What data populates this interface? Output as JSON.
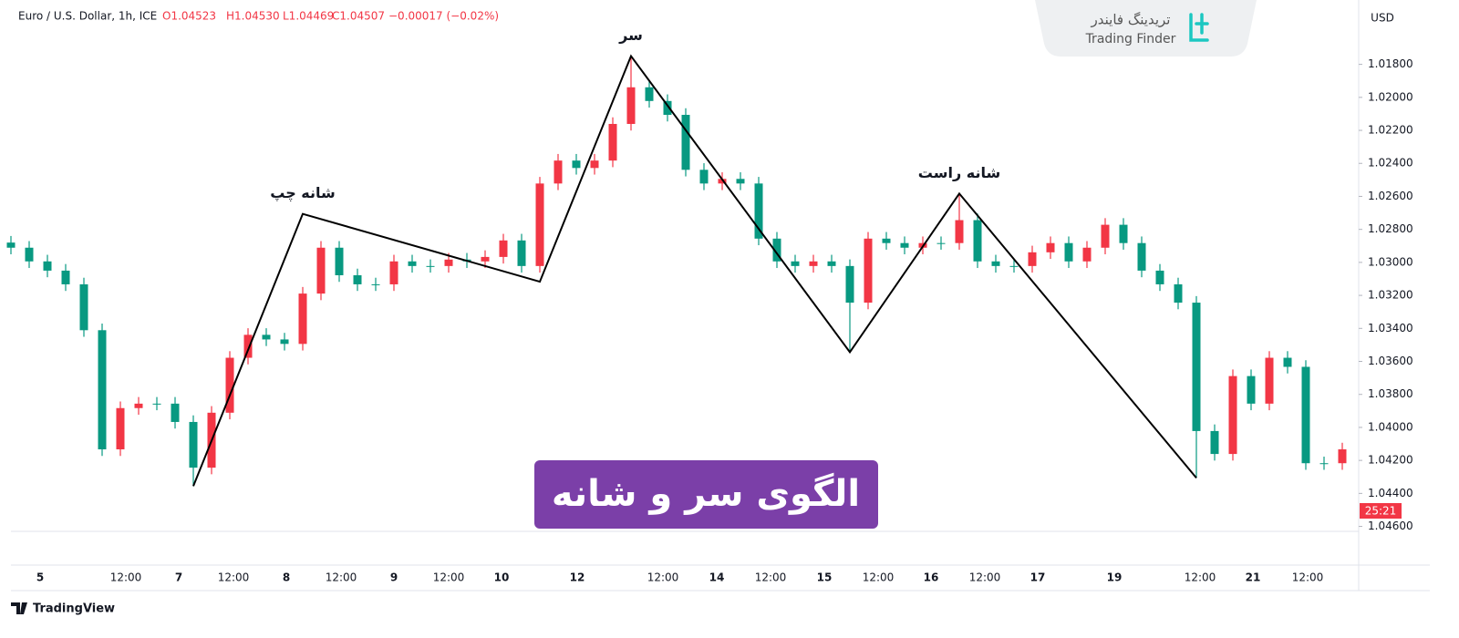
{
  "chart_data": {
    "type": "candlestick",
    "symbol": "Euro / U.S. Dollar, 1h, ICE",
    "ohlc_legend": [
      "O1.04523",
      "H1.04530",
      "L1.04469",
      "C1.04507",
      "−0.00017 (−0.02%)"
    ],
    "currency": "USD",
    "brand_fa": "تریدینگ فایندر",
    "brand_en": "Trading Finder",
    "title": "الگوی سر و شانه",
    "countdown": "25:21",
    "footer": "TradingView",
    "inverted_scale": true,
    "up_color": "#089981",
    "down_color": "#f23645",
    "ylim": [
      1.0463,
      1.0141
    ],
    "yticks": [
      {
        "value": 1.018,
        "label": "1.01800"
      },
      {
        "value": 1.02,
        "label": "1.02000"
      },
      {
        "value": 1.022,
        "label": "1.02200"
      },
      {
        "value": 1.024,
        "label": "1.02400"
      },
      {
        "value": 1.026,
        "label": "1.02600"
      },
      {
        "value": 1.028,
        "label": "1.02800"
      },
      {
        "value": 1.03,
        "label": "1.03000"
      },
      {
        "value": 1.032,
        "label": "1.03200"
      },
      {
        "value": 1.034,
        "label": "1.03400"
      },
      {
        "value": 1.036,
        "label": "1.03600"
      },
      {
        "value": 1.038,
        "label": "1.03800"
      },
      {
        "value": 1.04,
        "label": "1.04000"
      },
      {
        "value": 1.042,
        "label": "1.04200"
      },
      {
        "value": 1.044,
        "label": "1.04400"
      },
      {
        "value": 1.046,
        "label": "1.04600"
      }
    ],
    "time_labels": [
      "5",
      "12:00",
      "7",
      "12:00",
      "8",
      "12:00",
      "9",
      "12:00",
      "10",
      "12",
      "12:00",
      "14",
      "12:00",
      "15",
      "12:00",
      "16",
      "12:00",
      "17",
      "19",
      "12:00",
      "21",
      "12:00"
    ],
    "candles": [
      [
        1.0288,
        1.02951,
        1.0284,
        1.02911
      ],
      [
        1.02911,
        1.03034,
        1.02871,
        1.02994
      ],
      [
        1.02994,
        1.0309,
        1.02954,
        1.0305
      ],
      [
        1.0305,
        1.03173,
        1.0301,
        1.03133
      ],
      [
        1.03133,
        1.03451,
        1.03093,
        1.03411
      ],
      [
        1.03411,
        1.04173,
        1.03371,
        1.04133
      ],
      [
        1.04133,
        1.04173,
        1.03843,
        1.03883
      ],
      [
        1.03883,
        1.03923,
        1.03816,
        1.03856
      ],
      [
        1.03856,
        1.03896,
        1.03816,
        1.03856
      ],
      [
        1.03856,
        1.04007,
        1.03816,
        1.03967
      ],
      [
        1.03967,
        1.04356,
        1.03927,
        1.04244
      ],
      [
        1.04244,
        1.04284,
        1.03871,
        1.03911
      ],
      [
        1.03911,
        1.03951,
        1.03538,
        1.03578
      ],
      [
        1.03578,
        1.03618,
        1.03399,
        1.03439
      ],
      [
        1.03439,
        1.03507,
        1.03399,
        1.03467
      ],
      [
        1.03467,
        1.03534,
        1.03427,
        1.03494
      ],
      [
        1.03494,
        1.03534,
        1.03149,
        1.03189
      ],
      [
        1.03189,
        1.03229,
        1.02871,
        1.02911
      ],
      [
        1.02911,
        1.03118,
        1.02871,
        1.03078
      ],
      [
        1.03078,
        1.03173,
        1.03038,
        1.03133
      ],
      [
        1.03133,
        1.03173,
        1.03093,
        1.03133
      ],
      [
        1.03133,
        1.03173,
        1.02954,
        1.02994
      ],
      [
        1.02994,
        1.03062,
        1.02954,
        1.03022
      ],
      [
        1.03022,
        1.03062,
        1.02982,
        1.03022
      ],
      [
        1.03022,
        1.03062,
        1.02943,
        1.02983
      ],
      [
        1.02983,
        1.03034,
        1.02943,
        1.02994
      ],
      [
        1.02994,
        1.03034,
        1.02927,
        1.02967
      ],
      [
        1.02967,
        1.03007,
        1.02827,
        1.02867
      ],
      [
        1.02867,
        1.03062,
        1.02827,
        1.03022
      ],
      [
        1.03022,
        1.03062,
        1.02482,
        1.02522
      ],
      [
        1.02522,
        1.02562,
        1.02343,
        1.02383
      ],
      [
        1.02383,
        1.02468,
        1.02343,
        1.02428
      ],
      [
        1.02428,
        1.02468,
        1.02343,
        1.02383
      ],
      [
        1.02383,
        1.02423,
        1.02121,
        1.02161
      ],
      [
        1.02161,
        1.02201,
        1.0175,
        1.01939
      ],
      [
        1.01939,
        1.02062,
        1.01899,
        1.02022
      ],
      [
        1.02022,
        1.02146,
        1.01982,
        1.02106
      ],
      [
        1.02106,
        1.02479,
        1.02066,
        1.02439
      ],
      [
        1.02439,
        1.02562,
        1.02399,
        1.02522
      ],
      [
        1.02522,
        1.02562,
        1.02454,
        1.02494
      ],
      [
        1.02494,
        1.02562,
        1.02454,
        1.02522
      ],
      [
        1.02522,
        1.02896,
        1.02482,
        1.02856
      ],
      [
        1.02856,
        1.03034,
        1.02816,
        1.02994
      ],
      [
        1.02994,
        1.03062,
        1.02954,
        1.03022
      ],
      [
        1.03022,
        1.03062,
        1.02954,
        1.02994
      ],
      [
        1.02994,
        1.03062,
        1.02954,
        1.03022
      ],
      [
        1.03022,
        1.03544,
        1.02982,
        1.03244
      ],
      [
        1.03244,
        1.03284,
        1.02816,
        1.02856
      ],
      [
        1.02856,
        1.02923,
        1.02816,
        1.02883
      ],
      [
        1.02883,
        1.02951,
        1.02843,
        1.02911
      ],
      [
        1.02911,
        1.02951,
        1.02843,
        1.02883
      ],
      [
        1.02883,
        1.02923,
        1.02843,
        1.02883
      ],
      [
        1.02883,
        1.02923,
        1.02584,
        1.02744
      ],
      [
        1.02744,
        1.03034,
        1.02704,
        1.02994
      ],
      [
        1.02994,
        1.03062,
        1.02954,
        1.03022
      ],
      [
        1.03022,
        1.03062,
        1.02982,
        1.03022
      ],
      [
        1.03022,
        1.03062,
        1.02899,
        1.02939
      ],
      [
        1.02939,
        1.02979,
        1.02843,
        1.02883
      ],
      [
        1.02883,
        1.03034,
        1.02843,
        1.02994
      ],
      [
        1.02994,
        1.03034,
        1.02871,
        1.02911
      ],
      [
        1.02911,
        1.02951,
        1.02732,
        1.02772
      ],
      [
        1.02772,
        1.02923,
        1.02732,
        1.02883
      ],
      [
        1.02883,
        1.0309,
        1.02843,
        1.0305
      ],
      [
        1.0305,
        1.03173,
        1.0301,
        1.03133
      ],
      [
        1.03133,
        1.03284,
        1.03093,
        1.03244
      ],
      [
        1.03244,
        1.04306,
        1.03204,
        1.04022
      ],
      [
        1.04022,
        1.04201,
        1.03982,
        1.04161
      ],
      [
        1.04161,
        1.04201,
        1.03649,
        1.03689
      ],
      [
        1.03689,
        1.03896,
        1.03649,
        1.03856
      ],
      [
        1.03856,
        1.03896,
        1.03538,
        1.03578
      ],
      [
        1.03578,
        1.03673,
        1.03538,
        1.03633
      ],
      [
        1.03633,
        1.04257,
        1.03593,
        1.04217
      ],
      [
        1.04217,
        1.04257,
        1.04177,
        1.04217
      ],
      [
        1.04217,
        1.04257,
        1.04093,
        1.04133
      ]
    ],
    "pattern": {
      "x": [
        10,
        16,
        29,
        34,
        46,
        52,
        65
      ],
      "values": [
        1.04356,
        1.02706,
        1.03117,
        1.0175,
        1.03544,
        1.02583,
        1.04306
      ]
    },
    "annotations": [
      "شانه چپ",
      "سر",
      "شانه راست"
    ]
  }
}
